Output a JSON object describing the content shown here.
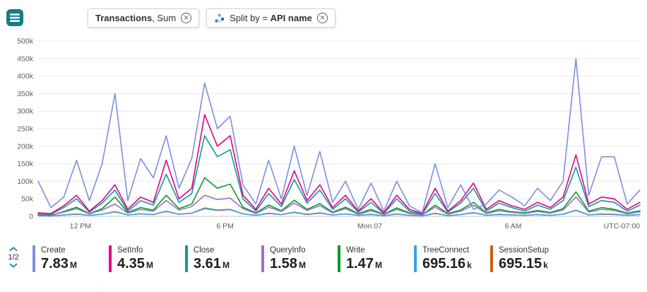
{
  "toolbar": {
    "metric_pill": {
      "bold": "Transactions",
      "rest": ", Sum"
    },
    "split_pill": {
      "prefix": "Split by = ",
      "bold": "API name"
    }
  },
  "legend": {
    "page": "1/2"
  },
  "chart_data": {
    "type": "line",
    "title": "Transactions, Sum split by API name",
    "xlabel": "",
    "ylabel": "",
    "units": "thousands of transactions",
    "ylim": [
      0,
      500
    ],
    "grid": true,
    "legend_position": "bottom",
    "timezone_label": "UTC-07:00",
    "y_ticks": [
      {
        "v": 0,
        "label": "0"
      },
      {
        "v": 50,
        "label": "50k"
      },
      {
        "v": 100,
        "label": "100k"
      },
      {
        "v": 150,
        "label": "150k"
      },
      {
        "v": 200,
        "label": "200k"
      },
      {
        "v": 250,
        "label": "250k"
      },
      {
        "v": 300,
        "label": "300k"
      },
      {
        "v": 350,
        "label": "350k"
      },
      {
        "v": 400,
        "label": "400k"
      },
      {
        "v": 450,
        "label": "450k"
      },
      {
        "v": 500,
        "label": "500k"
      }
    ],
    "x_ticks": [
      {
        "pos": 3.3,
        "label": "12 PM"
      },
      {
        "pos": 14.6,
        "label": "6 PM"
      },
      {
        "pos": 25.9,
        "label": "Mon 07"
      },
      {
        "pos": 37.1,
        "label": "6 AM"
      }
    ],
    "series": [
      {
        "name": "Create",
        "color": "#7d8fe0",
        "total": "7.83",
        "total_unit": "M",
        "values": [
          100,
          25,
          55,
          160,
          45,
          150,
          350,
          45,
          165,
          110,
          230,
          80,
          165,
          380,
          250,
          285,
          90,
          35,
          160,
          50,
          200,
          60,
          185,
          40,
          100,
          20,
          95,
          15,
          100,
          30,
          10,
          150,
          25,
          90,
          20,
          35,
          75,
          55,
          30,
          80,
          45,
          100,
          450,
          60,
          170,
          170,
          35,
          75
        ]
      },
      {
        "name": "SetInfo",
        "color": "#e3008c",
        "total": "4.35",
        "total_unit": "M",
        "values": [
          10,
          8,
          30,
          60,
          15,
          45,
          90,
          20,
          55,
          40,
          160,
          50,
          80,
          290,
          200,
          230,
          60,
          20,
          80,
          35,
          130,
          45,
          90,
          25,
          60,
          15,
          50,
          10,
          60,
          20,
          8,
          80,
          15,
          45,
          95,
          20,
          45,
          30,
          20,
          40,
          25,
          55,
          175,
          35,
          55,
          50,
          20,
          40
        ]
      },
      {
        "name": "Close",
        "color": "#0e9a9a",
        "total": "3.61",
        "total_unit": "M",
        "values": [
          8,
          6,
          25,
          50,
          12,
          38,
          75,
          15,
          45,
          32,
          120,
          40,
          65,
          230,
          170,
          190,
          50,
          15,
          65,
          28,
          105,
          38,
          75,
          20,
          50,
          12,
          40,
          8,
          50,
          15,
          6,
          65,
          12,
          38,
          80,
          15,
          38,
          25,
          15,
          32,
          20,
          45,
          140,
          28,
          45,
          40,
          15,
          32
        ]
      },
      {
        "name": "QueryInfo",
        "color": "#a06ec0",
        "total": "1.58",
        "total_unit": "M",
        "values": [
          5,
          4,
          12,
          22,
          7,
          18,
          35,
          9,
          20,
          15,
          45,
          18,
          28,
          60,
          48,
          52,
          22,
          8,
          26,
          14,
          38,
          17,
          30,
          10,
          22,
          6,
          16,
          5,
          20,
          8,
          4,
          26,
          6,
          15,
          32,
          8,
          16,
          11,
          8,
          14,
          9,
          18,
          55,
          12,
          20,
          17,
          7,
          13
        ]
      },
      {
        "name": "Write",
        "color": "#0b9a2d",
        "total": "1.47",
        "total_unit": "M",
        "values": [
          4,
          3,
          14,
          26,
          8,
          22,
          55,
          11,
          25,
          18,
          60,
          22,
          35,
          110,
          80,
          92,
          26,
          10,
          32,
          16,
          46,
          20,
          36,
          12,
          26,
          8,
          20,
          6,
          24,
          10,
          4,
          32,
          8,
          18,
          40,
          10,
          20,
          13,
          10,
          17,
          11,
          22,
          70,
          15,
          25,
          20,
          9,
          16
        ]
      },
      {
        "name": "TreeConnect",
        "color": "#3aa3dd",
        "total": "695.16",
        "total_unit": "k",
        "values": [
          2,
          1,
          4,
          7,
          3,
          6,
          14,
          4,
          7,
          5,
          15,
          6,
          9,
          24,
          18,
          20,
          7,
          3,
          9,
          5,
          12,
          6,
          10,
          4,
          7,
          3,
          6,
          2,
          7,
          3,
          1,
          9,
          2,
          5,
          11,
          3,
          6,
          4,
          3,
          5,
          3,
          6,
          18,
          4,
          7,
          6,
          3,
          5
        ]
      },
      {
        "name": "SessionSetup",
        "color": "#ce5e17",
        "total": "695.15",
        "total_unit": "k",
        "values": [
          2,
          1,
          4,
          6,
          3,
          6,
          13,
          4,
          7,
          5,
          14,
          6,
          9,
          22,
          17,
          19,
          7,
          3,
          8,
          5,
          11,
          5,
          9,
          4,
          7,
          3,
          5,
          2,
          6,
          3,
          1,
          8,
          2,
          5,
          10,
          3,
          5,
          4,
          3,
          5,
          3,
          6,
          17,
          4,
          6,
          5,
          3,
          5
        ]
      }
    ]
  }
}
